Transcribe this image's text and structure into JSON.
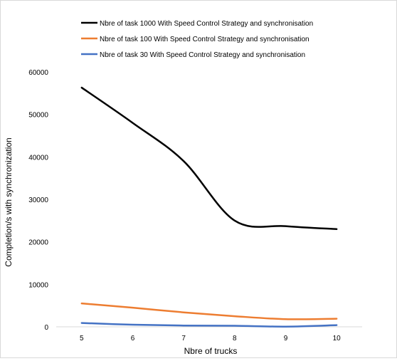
{
  "chart_data": {
    "type": "line",
    "title": "",
    "xlabel": "Nbre of trucks",
    "ylabel": "Completion/s with synchronization",
    "x": [
      5,
      6,
      7,
      8,
      9,
      10
    ],
    "xlim": [
      4.5,
      10.5
    ],
    "ylim": [
      0,
      60000
    ],
    "yticks": [
      0,
      10000,
      20000,
      30000,
      40000,
      50000,
      60000
    ],
    "grid": false,
    "legend_position": "top",
    "series": [
      {
        "name": "Nbre of task 1000 With Speed Control Strategy  and synchronisation",
        "color": "#000000",
        "values": [
          56300,
          48000,
          39000,
          25000,
          23700,
          23000
        ]
      },
      {
        "name": "Nbre of task 100 With Speed Control Strategy  and synchronisation",
        "color": "#ed7d31",
        "values": [
          5500,
          4500,
          3400,
          2500,
          1800,
          1900
        ]
      },
      {
        "name": "Nbre of task 30 With Speed Control Strategy and synchronisation",
        "color": "#4472c4",
        "values": [
          900,
          500,
          300,
          250,
          50,
          400
        ]
      }
    ]
  }
}
